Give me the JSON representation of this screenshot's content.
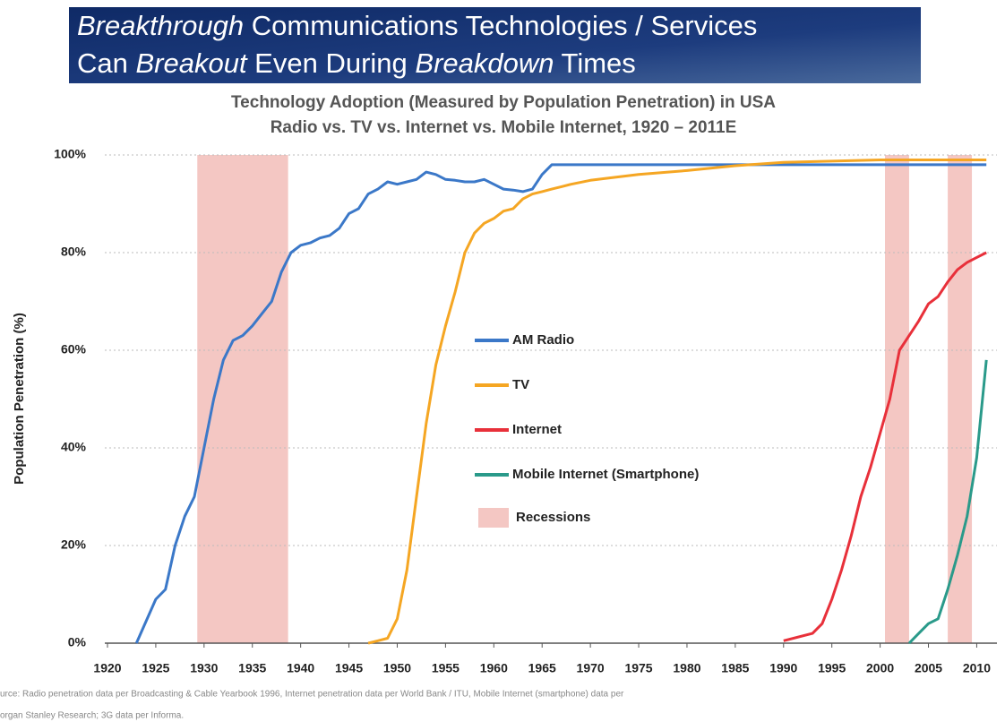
{
  "banner": {
    "lines": [
      [
        {
          "text": "Breakthrough",
          "italic": true
        },
        {
          "text": " Communications Technologies / Services",
          "italic": false
        }
      ],
      [
        {
          "text": "Can ",
          "italic": false
        },
        {
          "text": "Breakout",
          "italic": true
        },
        {
          "text": " Even During ",
          "italic": false
        },
        {
          "text": "Breakdown",
          "italic": true
        },
        {
          "text": " Times",
          "italic": false
        }
      ]
    ]
  },
  "chart_data": {
    "type": "line",
    "title": "Technology Adoption (Measured by Population Penetration) in USA",
    "subtitle": "Radio vs. TV vs. Internet vs. Mobile Internet, 1920 – 2011E",
    "y_label": "Population Penetration (%)",
    "xlim": [
      1920,
      2012
    ],
    "xticks": [
      1920,
      1925,
      1930,
      1935,
      1940,
      1945,
      1950,
      1955,
      1960,
      1965,
      1970,
      1975,
      1980,
      1985,
      1990,
      1995,
      2000,
      2005,
      2010
    ],
    "ylim": [
      0,
      100
    ],
    "yticks": [
      {
        "value": 0,
        "label": "0%"
      },
      {
        "value": 20,
        "label": "20%"
      },
      {
        "value": 40,
        "label": "40%"
      },
      {
        "value": 60,
        "label": "60%"
      },
      {
        "value": 80,
        "label": "80%"
      },
      {
        "value": 100,
        "label": "100%"
      }
    ],
    "grid": true,
    "series": [
      {
        "name": "AM Radio",
        "color": "#3b78c8",
        "x": [
          1923,
          1925,
          1926,
          1927,
          1928,
          1929,
          1930,
          1931,
          1932,
          1933,
          1934,
          1935,
          1936,
          1937,
          1938,
          1939,
          1940,
          1941,
          1942,
          1943,
          1944,
          1945,
          1946,
          1947,
          1948,
          1949,
          1950,
          1951,
          1952,
          1953,
          1954,
          1955,
          1956,
          1957,
          1958,
          1959,
          1960,
          1961,
          1962,
          1963,
          1964,
          1965,
          1966,
          2011
        ],
        "values": [
          0,
          9,
          11,
          20,
          26,
          30,
          40,
          50,
          58,
          62,
          63,
          65,
          67.5,
          70,
          76,
          80,
          81.5,
          82,
          83,
          83.5,
          85,
          88,
          89,
          92,
          93,
          94.5,
          94,
          94.5,
          95,
          96.5,
          96,
          95,
          94.8,
          94.5,
          94.5,
          95,
          94,
          93,
          92.8,
          92.5,
          93,
          96,
          98,
          98
        ]
      },
      {
        "name": "TV",
        "color": "#f5a623",
        "x": [
          1947,
          1948,
          1949,
          1950,
          1951,
          1952,
          1953,
          1954,
          1955,
          1956,
          1957,
          1958,
          1959,
          1960,
          1961,
          1962,
          1963,
          1964,
          1965,
          1966,
          1967,
          1968,
          1970,
          1972,
          1975,
          1980,
          1985,
          1990,
          2000,
          2011
        ],
        "values": [
          0,
          0.5,
          1,
          5,
          15,
          30,
          45,
          57,
          65,
          72,
          80,
          84,
          86,
          87,
          88.5,
          89,
          91,
          92,
          92.5,
          93,
          93.5,
          94,
          94.8,
          95.3,
          96,
          96.8,
          97.8,
          98.5,
          99,
          99
        ]
      },
      {
        "name": "Internet",
        "color": "#e8303a",
        "x": [
          1990,
          1993,
          1994,
          1995,
          1996,
          1997,
          1998,
          1999,
          2000,
          2001,
          2002,
          2003,
          2004,
          2005,
          2006,
          2007,
          2008,
          2009,
          2010,
          2011
        ],
        "values": [
          0.5,
          2,
          4,
          9,
          15,
          22,
          30,
          36,
          43,
          50,
          60,
          63,
          66,
          69.5,
          71,
          74,
          76.5,
          78,
          79,
          80
        ]
      },
      {
        "name": "Mobile Internet (Smartphone)",
        "color": "#2a9a8a",
        "x": [
          2003,
          2004,
          2005,
          2006,
          2007,
          2008,
          2009,
          2010,
          2011
        ],
        "values": [
          0,
          2,
          4,
          5,
          11,
          18,
          26,
          38,
          58
        ]
      }
    ],
    "recessions": {
      "name": "Recessions",
      "color": "#f4c7c3",
      "ranges": [
        [
          1929.3,
          1938.7
        ],
        [
          2000.5,
          2003
        ],
        [
          2007,
          2009.5
        ]
      ]
    },
    "source": [
      "urce: Radio penetration data per Broadcasting & Cable Yearbook 1996, Internet penetration data per World Bank / ITU, Mobile Internet (smartphone) data per",
      "organ Stanley Research; 3G data per Informa."
    ]
  }
}
